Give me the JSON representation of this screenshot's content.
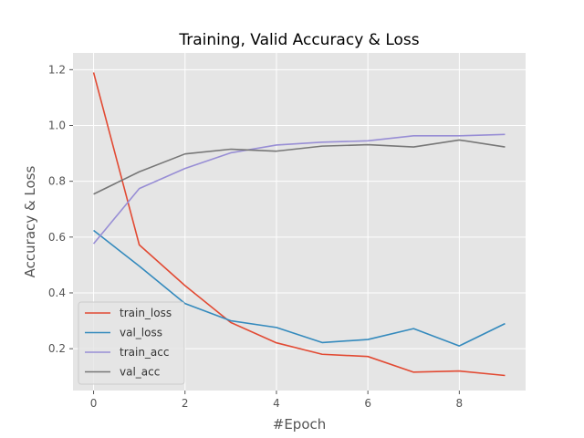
{
  "chart_data": {
    "type": "line",
    "title": "Training, Valid Accuracy & Loss",
    "xlabel": "#Epoch",
    "ylabel": "Accuracy & Loss",
    "x": [
      0,
      1,
      2,
      3,
      4,
      5,
      6,
      7,
      8,
      9
    ],
    "xlim": [
      -0.45,
      9.45
    ],
    "ylim": [
      0.05,
      1.26
    ],
    "xticks": [
      0,
      2,
      4,
      6,
      8
    ],
    "yticks": [
      0.2,
      0.4,
      0.6,
      0.8,
      1.0,
      1.2
    ],
    "xtick_labels": [
      "0",
      "2",
      "4",
      "6",
      "8"
    ],
    "ytick_labels": [
      "0.2",
      "0.4",
      "0.6",
      "0.8",
      "1.0",
      "1.2"
    ],
    "grid": true,
    "legend_position": "lower-left",
    "series": [
      {
        "name": "train_loss",
        "color": "#E24A33",
        "values": [
          1.19,
          0.572,
          0.426,
          0.294,
          0.221,
          0.18,
          0.172,
          0.116,
          0.12,
          0.104
        ]
      },
      {
        "name": "val_loss",
        "color": "#348ABD",
        "values": [
          0.624,
          0.496,
          0.362,
          0.3,
          0.276,
          0.222,
          0.233,
          0.272,
          0.21,
          0.29
        ]
      },
      {
        "name": "train_acc",
        "color": "#988ED5",
        "values": [
          0.576,
          0.774,
          0.846,
          0.902,
          0.93,
          0.94,
          0.945,
          0.963,
          0.963,
          0.968
        ]
      },
      {
        "name": "val_acc",
        "color": "#777777",
        "values": [
          0.754,
          0.834,
          0.898,
          0.915,
          0.908,
          0.926,
          0.931,
          0.923,
          0.948,
          0.923
        ]
      }
    ]
  }
}
